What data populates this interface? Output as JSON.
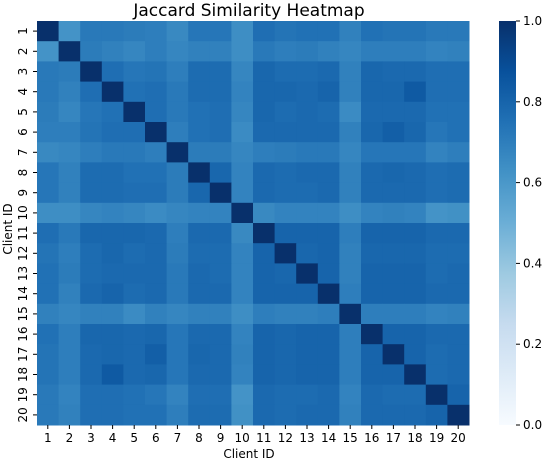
{
  "chart_data": {
    "type": "heatmap",
    "title": "Jaccard Similarity Heatmap",
    "xlabel": "Client ID",
    "ylabel": "Client ID",
    "x_categories": [
      "1",
      "2",
      "3",
      "4",
      "5",
      "6",
      "7",
      "8",
      "9",
      "10",
      "11",
      "12",
      "13",
      "14",
      "15",
      "16",
      "17",
      "18",
      "19",
      "20"
    ],
    "y_categories": [
      "1",
      "2",
      "3",
      "4",
      "5",
      "6",
      "7",
      "8",
      "9",
      "10",
      "11",
      "12",
      "13",
      "14",
      "15",
      "16",
      "17",
      "18",
      "19",
      "20"
    ],
    "color_range": [
      0.0,
      1.0
    ],
    "colorbar_ticks": [
      "0.0",
      "0.2",
      "0.4",
      "0.6",
      "0.8",
      "1.0"
    ],
    "colormap": "Blues",
    "matrix": [
      [
        1.0,
        0.62,
        0.72,
        0.72,
        0.71,
        0.7,
        0.66,
        0.73,
        0.73,
        0.64,
        0.76,
        0.74,
        0.75,
        0.75,
        0.69,
        0.75,
        0.74,
        0.74,
        0.72,
        0.72
      ],
      [
        0.62,
        1.0,
        0.71,
        0.69,
        0.67,
        0.7,
        0.67,
        0.69,
        0.69,
        0.64,
        0.72,
        0.7,
        0.71,
        0.69,
        0.67,
        0.7,
        0.7,
        0.7,
        0.68,
        0.69
      ],
      [
        0.72,
        0.71,
        1.0,
        0.76,
        0.73,
        0.74,
        0.7,
        0.77,
        0.77,
        0.67,
        0.79,
        0.77,
        0.77,
        0.78,
        0.69,
        0.79,
        0.78,
        0.78,
        0.76,
        0.76
      ],
      [
        0.72,
        0.69,
        0.76,
        1.0,
        0.75,
        0.76,
        0.72,
        0.77,
        0.77,
        0.68,
        0.79,
        0.79,
        0.78,
        0.8,
        0.69,
        0.79,
        0.79,
        0.84,
        0.76,
        0.76
      ],
      [
        0.71,
        0.67,
        0.73,
        0.75,
        1.0,
        0.76,
        0.72,
        0.75,
        0.76,
        0.67,
        0.79,
        0.77,
        0.78,
        0.77,
        0.65,
        0.78,
        0.78,
        0.78,
        0.75,
        0.75
      ],
      [
        0.7,
        0.7,
        0.74,
        0.76,
        0.76,
        1.0,
        0.7,
        0.75,
        0.76,
        0.65,
        0.78,
        0.78,
        0.78,
        0.78,
        0.69,
        0.79,
        0.82,
        0.79,
        0.73,
        0.75
      ],
      [
        0.66,
        0.67,
        0.7,
        0.72,
        0.72,
        0.7,
        1.0,
        0.71,
        0.71,
        0.67,
        0.7,
        0.71,
        0.72,
        0.72,
        0.67,
        0.73,
        0.73,
        0.73,
        0.68,
        0.7
      ],
      [
        0.73,
        0.69,
        0.77,
        0.77,
        0.75,
        0.75,
        0.71,
        1.0,
        0.79,
        0.68,
        0.78,
        0.77,
        0.78,
        0.78,
        0.69,
        0.78,
        0.79,
        0.78,
        0.76,
        0.77
      ],
      [
        0.73,
        0.69,
        0.77,
        0.77,
        0.76,
        0.76,
        0.71,
        0.79,
        1.0,
        0.68,
        0.78,
        0.77,
        0.77,
        0.78,
        0.69,
        0.78,
        0.78,
        0.78,
        0.76,
        0.77
      ],
      [
        0.64,
        0.64,
        0.67,
        0.68,
        0.67,
        0.65,
        0.67,
        0.68,
        0.68,
        1.0,
        0.66,
        0.68,
        0.68,
        0.68,
        0.64,
        0.68,
        0.69,
        0.68,
        0.62,
        0.63
      ],
      [
        0.76,
        0.72,
        0.79,
        0.79,
        0.79,
        0.78,
        0.7,
        0.78,
        0.78,
        0.66,
        1.0,
        0.8,
        0.8,
        0.8,
        0.7,
        0.8,
        0.8,
        0.8,
        0.78,
        0.78
      ],
      [
        0.74,
        0.7,
        0.77,
        0.79,
        0.77,
        0.78,
        0.71,
        0.77,
        0.77,
        0.68,
        0.8,
        1.0,
        0.79,
        0.8,
        0.69,
        0.79,
        0.79,
        0.79,
        0.77,
        0.77
      ],
      [
        0.75,
        0.71,
        0.77,
        0.78,
        0.78,
        0.78,
        0.72,
        0.78,
        0.77,
        0.68,
        0.8,
        0.79,
        1.0,
        0.8,
        0.69,
        0.8,
        0.8,
        0.8,
        0.77,
        0.78
      ],
      [
        0.75,
        0.69,
        0.78,
        0.8,
        0.77,
        0.78,
        0.72,
        0.78,
        0.78,
        0.68,
        0.8,
        0.8,
        0.8,
        1.0,
        0.7,
        0.8,
        0.8,
        0.8,
        0.78,
        0.78
      ],
      [
        0.69,
        0.67,
        0.69,
        0.69,
        0.65,
        0.69,
        0.67,
        0.69,
        0.69,
        0.64,
        0.7,
        0.69,
        0.69,
        0.7,
        1.0,
        0.7,
        0.7,
        0.7,
        0.68,
        0.69
      ],
      [
        0.75,
        0.7,
        0.79,
        0.79,
        0.78,
        0.79,
        0.73,
        0.78,
        0.78,
        0.68,
        0.8,
        0.79,
        0.8,
        0.8,
        0.7,
        1.0,
        0.8,
        0.8,
        0.78,
        0.78
      ],
      [
        0.74,
        0.7,
        0.78,
        0.79,
        0.78,
        0.82,
        0.73,
        0.79,
        0.78,
        0.69,
        0.8,
        0.79,
        0.8,
        0.8,
        0.7,
        0.8,
        1.0,
        0.8,
        0.77,
        0.78
      ],
      [
        0.74,
        0.7,
        0.78,
        0.84,
        0.78,
        0.79,
        0.73,
        0.78,
        0.78,
        0.68,
        0.8,
        0.79,
        0.8,
        0.8,
        0.7,
        0.8,
        0.8,
        1.0,
        0.77,
        0.78
      ],
      [
        0.72,
        0.68,
        0.76,
        0.76,
        0.75,
        0.73,
        0.68,
        0.76,
        0.76,
        0.62,
        0.78,
        0.77,
        0.77,
        0.78,
        0.68,
        0.78,
        0.77,
        0.77,
        1.0,
        0.8
      ],
      [
        0.72,
        0.69,
        0.76,
        0.76,
        0.75,
        0.75,
        0.7,
        0.77,
        0.77,
        0.63,
        0.78,
        0.77,
        0.78,
        0.78,
        0.69,
        0.78,
        0.78,
        0.78,
        0.8,
        1.0
      ]
    ]
  }
}
